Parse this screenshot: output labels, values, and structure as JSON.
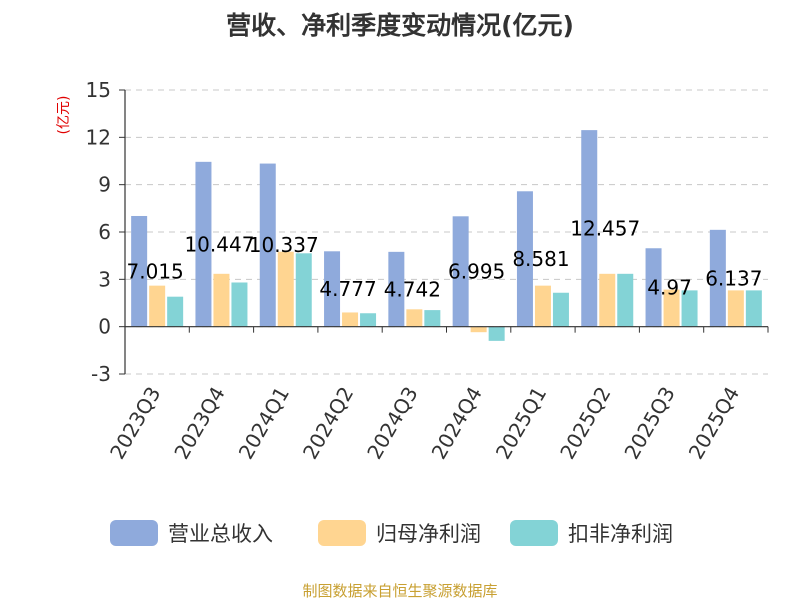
{
  "chart_data": {
    "type": "bar",
    "title": "营收、净利季度变动情况(亿元)",
    "ylabel": "(亿元)",
    "ylim": [
      -3,
      15
    ],
    "yticks": [
      -3,
      0,
      3,
      6,
      9,
      12,
      15
    ],
    "grid": true,
    "legend_position": "bottom",
    "categories": [
      "2023Q3",
      "2023Q4",
      "2024Q1",
      "2024Q2",
      "2024Q3",
      "2024Q4",
      "2025Q1",
      "2025Q2",
      "2025Q3",
      "2025Q4"
    ],
    "series": [
      {
        "name": "营业总收入",
        "color": "#8faadc",
        "values": [
          7.015,
          10.447,
          10.337,
          4.777,
          4.742,
          6.995,
          8.581,
          12.457,
          4.97,
          6.137
        ]
      },
      {
        "name": "归母净利润",
        "color": "#ffd591",
        "values": [
          2.6,
          3.35,
          4.75,
          0.9,
          1.1,
          -0.35,
          2.6,
          3.35,
          2.35,
          2.3
        ]
      },
      {
        "name": "扣非净利润",
        "color": "#83d3d6",
        "values": [
          1.9,
          2.8,
          4.65,
          0.85,
          1.05,
          -0.9,
          2.15,
          3.35,
          2.3,
          2.3
        ]
      }
    ],
    "data_labels": [
      "7.015",
      "10.447",
      "10.337",
      "4.777",
      "4.742",
      "6.995",
      "8.581",
      "12.457",
      "4.97",
      "6.137"
    ]
  },
  "source": "制图数据来自恒生聚源数据库"
}
